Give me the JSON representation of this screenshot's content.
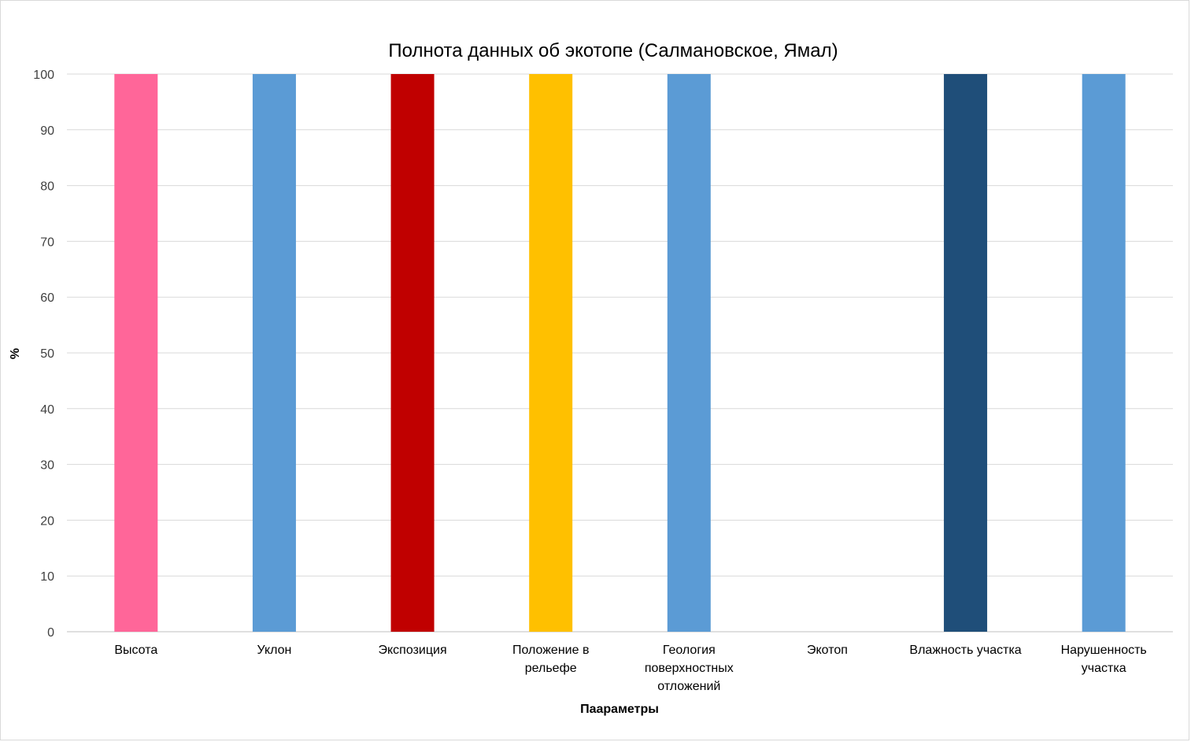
{
  "chart_data": {
    "type": "bar",
    "title": "Полнота данных об экотопе (Салмановское, Ямал)",
    "xlabel": "Паараметры",
    "ylabel": "%",
    "ylim": [
      0,
      100
    ],
    "yticks": [
      0,
      10,
      20,
      30,
      40,
      50,
      60,
      70,
      80,
      90,
      100
    ],
    "grid": true,
    "categories": [
      "Высота",
      "Уклон",
      "Экспозиция",
      "Положение в рельефе",
      "Геология поверхностных отложений",
      "Экотоп",
      "Влажность участка",
      "Нарушенность участка"
    ],
    "values": [
      100,
      100,
      100,
      100,
      100,
      0,
      100,
      100
    ],
    "colors": [
      "#FF6699",
      "#5B9BD5",
      "#C00000",
      "#FFC000",
      "#5B9BD5",
      "#5B9BD5",
      "#1F4E79",
      "#5B9BD5"
    ]
  }
}
